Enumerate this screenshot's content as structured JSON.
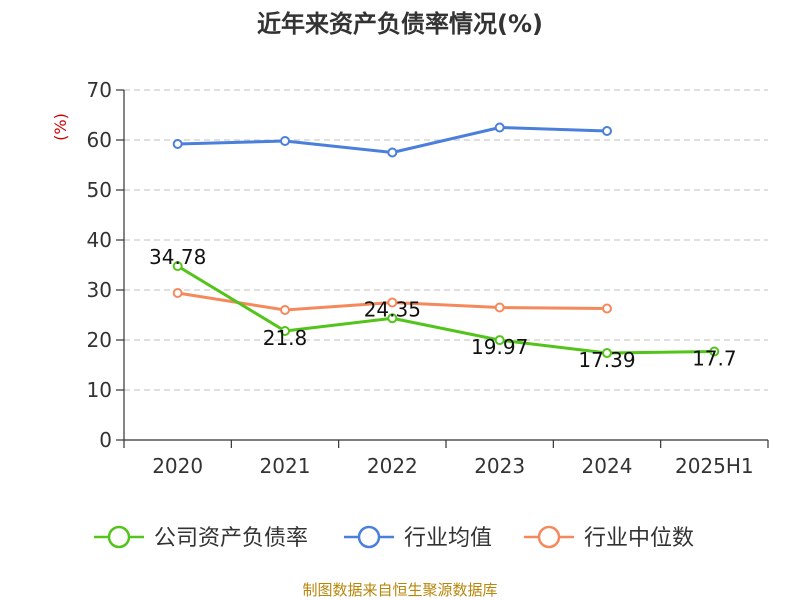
{
  "chart_data": {
    "type": "line",
    "title": "近年来资产负债率情况(%)",
    "unit": "(%)",
    "categories": [
      "2020",
      "2021",
      "2022",
      "2023",
      "2024",
      "2025H1"
    ],
    "ylim": [
      0,
      70
    ],
    "yticks": [
      0,
      10,
      20,
      30,
      40,
      50,
      60,
      70
    ],
    "grid": true,
    "legend_position": "bottom",
    "series": [
      {
        "name": "公司资产负债率",
        "color": "#52c41a",
        "values": [
          34.78,
          21.8,
          24.35,
          19.97,
          17.39,
          17.7
        ],
        "labels": [
          "34.78",
          "21.8",
          "24.35",
          "19.97",
          "17.39",
          "17.7"
        ]
      },
      {
        "name": "行业均值",
        "color": "#4a7fdc",
        "values": [
          59.2,
          59.8,
          57.5,
          62.5,
          61.8,
          null
        ]
      },
      {
        "name": "行业中位数",
        "color": "#f5895c",
        "values": [
          29.4,
          26.0,
          27.5,
          26.5,
          26.3,
          null
        ]
      }
    ]
  },
  "source": "制图数据来自恒生聚源数据库",
  "colors": {
    "unit": "#cc0000",
    "source": "#b8860b",
    "grid": "#cccccc",
    "axis": "#333333"
  }
}
